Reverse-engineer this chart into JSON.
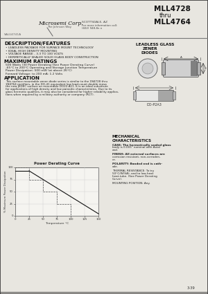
{
  "bg_color": "#e8e6e0",
  "title_part_line1": "MLL4728",
  "title_part_line2": "thru",
  "title_part_line3": "MLL4764",
  "company": "Microsemi Corp.",
  "company_sub": "The Johnson Way",
  "address1": "SCOTTSDALE, AZ",
  "address2": "For more information call:",
  "address3": "(602) 948-8n n",
  "part_num_left": "SALU4741A",
  "section_title1": "DESCRIPTION/FEATURES",
  "features": [
    "LEADLESS PACKAGE FOR SURFACE MOUNT TECHNOLOGY",
    "IDEAL HIGH DENSITY MOUNTING",
    "VOLTAGE RANGE - 3.3 TO 100 VOLTS",
    "HERMETICALLY SEALED SOLID GLASS BODY CONSTRUCTION"
  ],
  "section_title2": "MAXIMUM RATINGS",
  "max_ratings": [
    "500 Watts (30 Power Derating (See Power Derating Curve)",
    "-65°C to 200°C Operating and Storage Junction Temperature",
    "Power Dissipation: 500 mW (at above 26°C)",
    "Forward Voltage: to 200 mA: 1.2 Volts"
  ],
  "section_title3": "APPLICATION",
  "app_lines": [
    "This surface mountable zener diode series is similar to the 1N4728 thru",
    "1N4764 rectifiers, in the DO-41 equivalent low lead-count double mesa",
    "the new JEDEC surface on mountable DO22-A11. It is an ideal substitute",
    "for applications of high density and low parasitic characteristics. Due to its",
    "glass hermetic qualities, it may also be considered for higher reliability applica-",
    "tions when required by a military authority or company (RCT)."
  ],
  "right_label_line1": "LEADLESS GLASS",
  "right_label_line2": "ZENER",
  "right_label_line3": "DIODES",
  "pkg_label": "DO-P2A3",
  "mech_title1": "MECHANICAL",
  "mech_title2": "CHARACTERISTICS",
  "mech_lines": [
    "CASE: The hermetically sealed glass",
    "body is 0.065\" nominal with Axial",
    "end.",
    "",
    "FINISH: All external surfaces are",
    "corrosion resistant, non-corroden-",
    "ce.",
    "",
    "POLARITY: Banded end is cath-",
    "ode.",
    "",
    "THERMAL RESISTANCE: To try",
    "50°C/W(SA), and to low-heat",
    "heat-tube. (See Power Derating",
    "Curve).",
    "",
    "MOUNTING POSITION: Any."
  ],
  "graph_title": "Power Derating Curve",
  "graph_xlabel": "Temperature °C",
  "graph_ylabel": "% Maximum Power Dissipation",
  "graph_xticks": [
    "0",
    "25",
    "50",
    "75",
    "100",
    "125",
    "150"
  ],
  "graph_yticks": [
    "0",
    "25",
    "50",
    "75",
    "100"
  ],
  "page_num": "3-39"
}
